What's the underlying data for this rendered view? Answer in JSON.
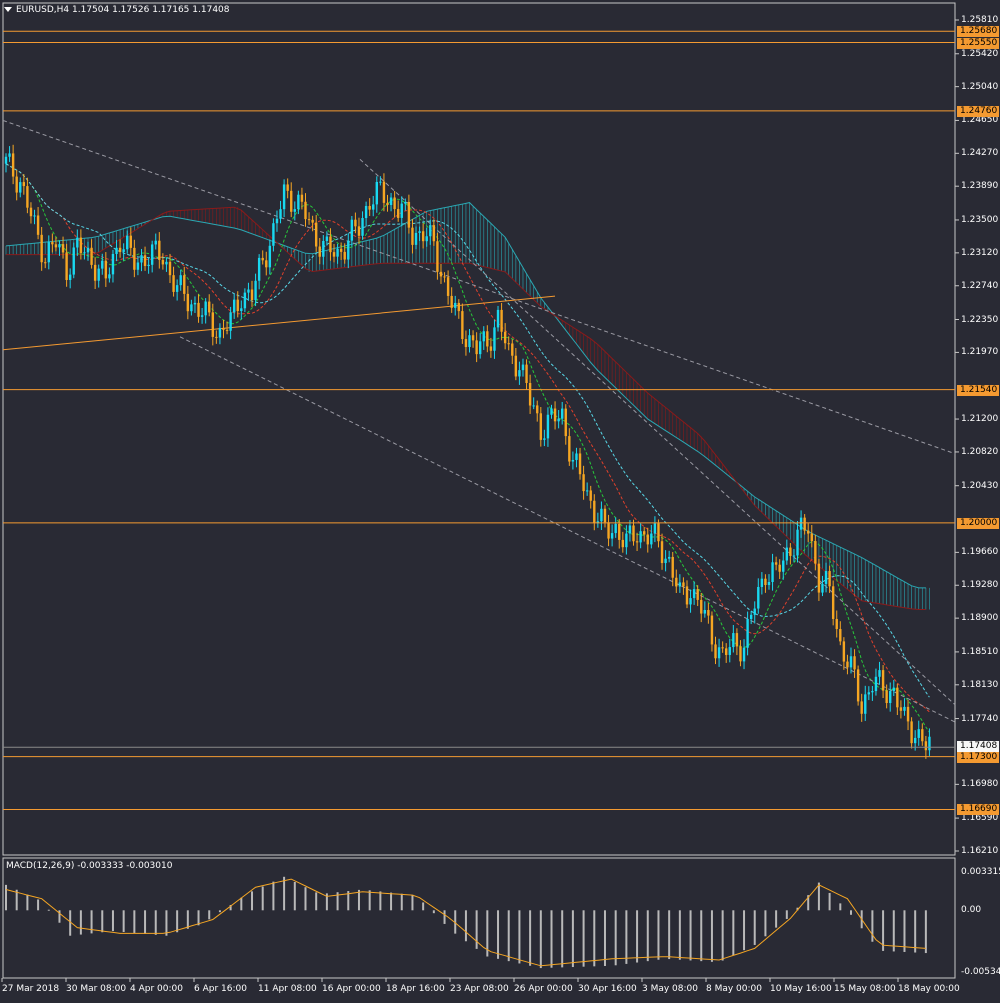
{
  "header": {
    "symbol": "EURUSD,H4",
    "open": "1.17504",
    "high": "1.17526",
    "low": "1.17165",
    "close": "1.17408"
  },
  "macd_header": "MACD(12,26,9) -0.003333 -0.003010",
  "colors": {
    "background": "#292a34",
    "bull_candle": "#19d8f0",
    "bear_candle": "#f5a623",
    "level_line": "#f49a31",
    "kumo_bull": "#2aa8b3",
    "kumo_bear": "#8b1a1a",
    "ma_fast": "#27c83a",
    "ma_mid": "#e0402b",
    "ma_slow": "#57d6e6",
    "macd_hist": "#b9b9b9",
    "macd_signal": "#f5a623"
  },
  "chart_data": {
    "type": "candlestick",
    "symbol": "EURUSD",
    "timeframe": "H4",
    "y_ticks": [
      "1.25810",
      "1.25420",
      "1.25040",
      "1.24650",
      "1.24270",
      "1.23890",
      "1.23500",
      "1.23120",
      "1.22740",
      "1.22350",
      "1.21970",
      "1.21200",
      "1.20820",
      "1.20430",
      "1.19660",
      "1.19280",
      "1.18900",
      "1.18510",
      "1.18130",
      "1.17740",
      "1.16980",
      "1.16590",
      "1.16210"
    ],
    "horizontal_levels": [
      "1.25680",
      "1.25550",
      "1.24760",
      "1.21540",
      "1.20000",
      "1.17300",
      "1.16690"
    ],
    "current_price": "1.17408",
    "x_ticks": [
      "27 Mar 2018",
      "30 Mar 08:00",
      "4 Apr 00:00",
      "6 Apr 16:00",
      "11 Apr 08:00",
      "16 Apr 00:00",
      "18 Apr 16:00",
      "23 Apr 08:00",
      "26 Apr 00:00",
      "30 Apr 16:00",
      "3 May 08:00",
      "8 May 00:00",
      "10 May 16:00",
      "15 May 08:00",
      "18 May 00:00"
    ],
    "macd_ticks": [
      "0.003315",
      "0.00",
      "-0.00534"
    ],
    "ylim": [
      1.1621,
      1.2581
    ],
    "close_path": [
      [
        0,
        1.2415
      ],
      [
        4,
        1.2395
      ],
      [
        8,
        1.234
      ],
      [
        11,
        1.231
      ],
      [
        14,
        1.2322
      ],
      [
        17,
        1.2295
      ],
      [
        20,
        1.2318
      ],
      [
        24,
        1.2305
      ],
      [
        28,
        1.228
      ],
      [
        32,
        1.233
      ],
      [
        36,
        1.23
      ],
      [
        40,
        1.231
      ],
      [
        44,
        1.2308
      ],
      [
        48,
        1.227
      ],
      [
        52,
        1.2255
      ],
      [
        56,
        1.2238
      ],
      [
        60,
        1.222
      ],
      [
        63,
        1.2232
      ],
      [
        66,
        1.2265
      ],
      [
        69,
        1.2262
      ],
      [
        72,
        1.2305
      ],
      [
        75,
        1.2335
      ],
      [
        78,
        1.238
      ],
      [
        81,
        1.2375
      ],
      [
        84,
        1.2355
      ],
      [
        87,
        1.233
      ],
      [
        90,
        1.2315
      ],
      [
        93,
        1.231
      ],
      [
        96,
        1.2328
      ],
      [
        99,
        1.234
      ],
      [
        102,
        1.2375
      ],
      [
        105,
        1.238
      ],
      [
        108,
        1.2372
      ],
      [
        111,
        1.236
      ],
      [
        114,
        1.2335
      ],
      [
        117,
        1.2335
      ],
      [
        120,
        1.232
      ],
      [
        123,
        1.2278
      ],
      [
        126,
        1.224
      ],
      [
        129,
        1.2218
      ],
      [
        132,
        1.22
      ],
      [
        135,
        1.221
      ],
      [
        138,
        1.2235
      ],
      [
        141,
        1.2195
      ],
      [
        144,
        1.2185
      ],
      [
        147,
        1.214
      ],
      [
        150,
        1.211
      ],
      [
        153,
        1.2118
      ],
      [
        156,
        1.2125
      ],
      [
        159,
        1.207
      ],
      [
        162,
        1.2045
      ],
      [
        165,
        1.2015
      ],
      [
        168,
        1.199
      ],
      [
        171,
        1.1995
      ],
      [
        174,
        1.1975
      ],
      [
        177,
        1.199
      ],
      [
        180,
        1.1985
      ],
      [
        183,
        1.1978
      ],
      [
        186,
        1.1955
      ],
      [
        189,
        1.1915
      ],
      [
        192,
        1.1925
      ],
      [
        195,
        1.19
      ],
      [
        198,
        1.187
      ],
      [
        201,
        1.1845
      ],
      [
        204,
        1.186
      ],
      [
        207,
        1.186
      ],
      [
        210,
        1.1905
      ],
      [
        213,
        1.1945
      ],
      [
        216,
        1.194
      ],
      [
        219,
        1.1965
      ],
      [
        222,
        1.1985
      ],
      [
        225,
        1.1995
      ],
      [
        228,
        1.1935
      ],
      [
        231,
        1.192
      ],
      [
        234,
        1.186
      ],
      [
        237,
        1.183
      ],
      [
        240,
        1.179
      ],
      [
        243,
        1.1815
      ],
      [
        246,
        1.181
      ],
      [
        249,
        1.1805
      ],
      [
        252,
        1.177
      ],
      [
        255,
        1.176
      ],
      [
        258,
        1.1741
      ]
    ],
    "kumo_span_a": [
      [
        0,
        1.232
      ],
      [
        25,
        1.233
      ],
      [
        45,
        1.2355
      ],
      [
        65,
        1.234
      ],
      [
        85,
        1.231
      ],
      [
        105,
        1.233
      ],
      [
        118,
        1.236
      ],
      [
        130,
        1.237
      ],
      [
        140,
        1.233
      ],
      [
        150,
        1.226
      ],
      [
        165,
        1.218
      ],
      [
        180,
        1.212
      ],
      [
        195,
        1.208
      ],
      [
        210,
        1.203
      ],
      [
        225,
        1.199
      ],
      [
        240,
        1.196
      ],
      [
        255,
        1.1925
      ]
    ],
    "kumo_span_b": [
      [
        0,
        1.231
      ],
      [
        25,
        1.231
      ],
      [
        45,
        1.236
      ],
      [
        65,
        1.2365
      ],
      [
        85,
        1.229
      ],
      [
        105,
        1.23
      ],
      [
        118,
        1.23
      ],
      [
        130,
        1.23
      ],
      [
        140,
        1.229
      ],
      [
        150,
        1.225
      ],
      [
        165,
        1.221
      ],
      [
        180,
        1.215
      ],
      [
        195,
        1.21
      ],
      [
        210,
        1.202
      ],
      [
        225,
        1.196
      ],
      [
        240,
        1.191
      ],
      [
        255,
        1.19
      ]
    ],
    "macd_hist": [
      [
        0,
        0.0022
      ],
      [
        10,
        0.0008
      ],
      [
        18,
        -0.0022
      ],
      [
        30,
        -0.0018
      ],
      [
        45,
        -0.0022
      ],
      [
        55,
        -0.0012
      ],
      [
        68,
        0.0015
      ],
      [
        78,
        0.0029
      ],
      [
        88,
        0.0014
      ],
      [
        100,
        0.0018
      ],
      [
        115,
        0.0013
      ],
      [
        125,
        -0.0018
      ],
      [
        135,
        -0.004
      ],
      [
        150,
        -0.005
      ],
      [
        170,
        -0.0048
      ],
      [
        185,
        -0.0042
      ],
      [
        200,
        -0.0045
      ],
      [
        210,
        -0.003
      ],
      [
        220,
        -0.0005
      ],
      [
        228,
        0.0024
      ],
      [
        236,
        0.0
      ],
      [
        245,
        -0.0035
      ],
      [
        258,
        -0.0037
      ]
    ],
    "macd_signal": [
      [
        0,
        0.0018
      ],
      [
        10,
        0.001
      ],
      [
        20,
        -0.0015
      ],
      [
        32,
        -0.002
      ],
      [
        45,
        -0.002
      ],
      [
        58,
        -0.0008
      ],
      [
        70,
        0.002
      ],
      [
        80,
        0.0027
      ],
      [
        90,
        0.0012
      ],
      [
        100,
        0.0016
      ],
      [
        115,
        0.0013
      ],
      [
        125,
        -0.0008
      ],
      [
        135,
        -0.0035
      ],
      [
        150,
        -0.0048
      ],
      [
        170,
        -0.0042
      ],
      [
        185,
        -0.004
      ],
      [
        200,
        -0.0043
      ],
      [
        210,
        -0.0033
      ],
      [
        220,
        -0.0007
      ],
      [
        228,
        0.0022
      ],
      [
        236,
        0.001
      ],
      [
        245,
        -0.003
      ],
      [
        258,
        -0.0033
      ]
    ]
  }
}
